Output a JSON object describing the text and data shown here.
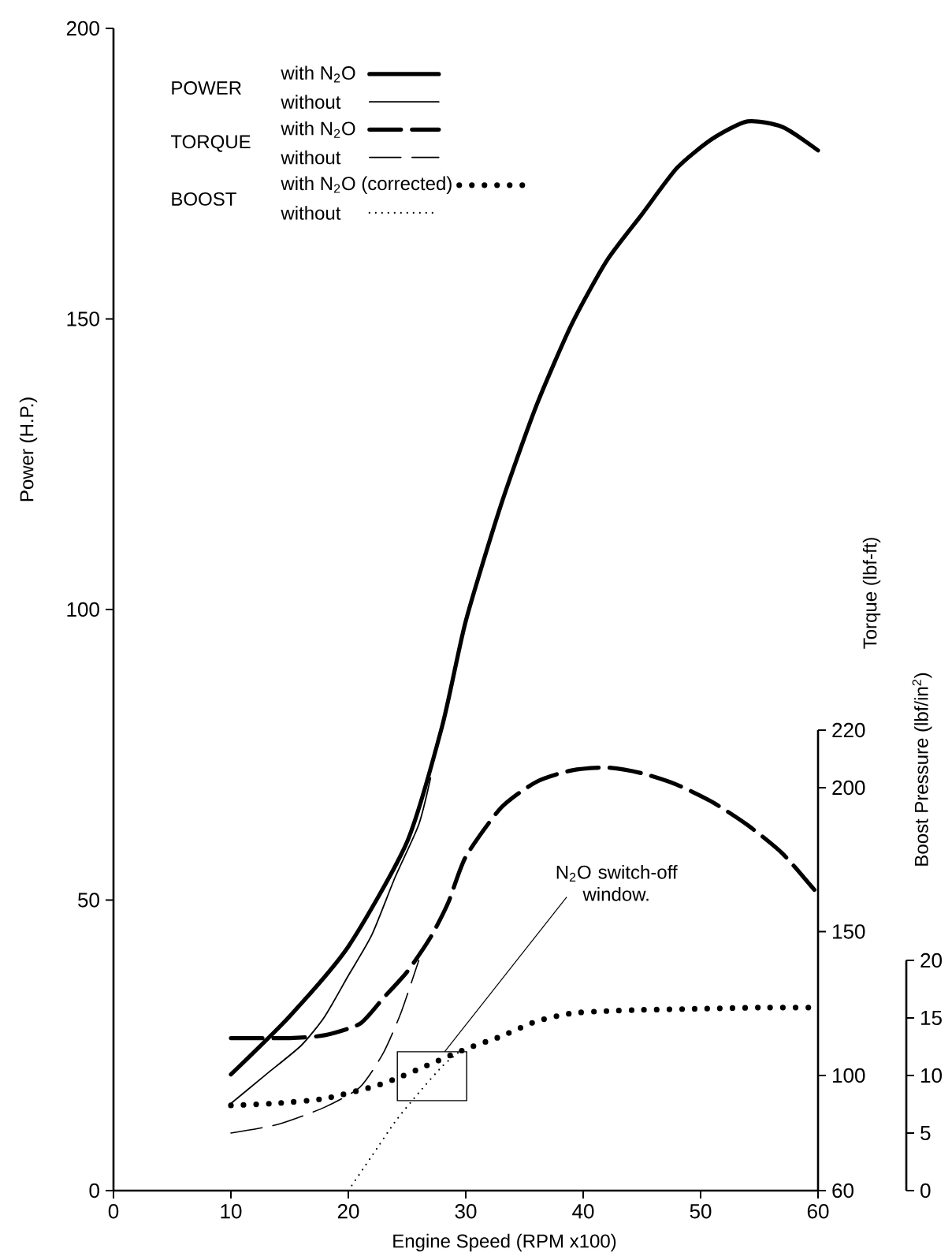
{
  "chart_data": {
    "type": "line",
    "xlabel": "Engine Speed (RPM x100)",
    "ylabel": "Power (H.P.)",
    "y2label": "Torque (lbf-ft)",
    "y3label": "Boost Pressure (lbf/in$^{2}$)",
    "xlim": [
      0,
      60
    ],
    "xticks": [
      0,
      10,
      20,
      30,
      40,
      50,
      60
    ],
    "ylim": [
      0,
      200
    ],
    "yticks": [
      0,
      50,
      100,
      150,
      200
    ],
    "y2lim": [
      60,
      220
    ],
    "y2ticks": [
      60,
      100,
      150,
      200,
      220
    ],
    "y3lim": [
      0,
      20
    ],
    "y3ticks": [
      0,
      5,
      10,
      15,
      20
    ],
    "legend": "top left",
    "annotations": [
      "POWER",
      "TORQUE",
      "BOOST",
      {
        "text": "N$_{2}$O switch-off window.",
        "x": 28.2,
        "y": 23.9
      }
    ],
    "series": [
      {
        "name": "with N$_{2}$O",
        "color": "#000000",
        "line_style": "solid",
        "x": [
          10,
          15,
          20,
          25,
          28,
          30,
          33,
          36,
          39,
          42,
          45,
          48,
          51,
          54,
          57,
          60
        ],
        "values": [
          20,
          30,
          42,
          60,
          80,
          98,
          118,
          135,
          149,
          160,
          168,
          176,
          181,
          184,
          183,
          179
        ]
      },
      {
        "name": "without",
        "color": "#000000",
        "line_style": "solid",
        "x": [
          10,
          13,
          16,
          18,
          20,
          22,
          24,
          26,
          27
        ],
        "values": [
          15,
          20,
          25,
          30,
          37,
          44,
          54,
          63,
          71
        ]
      },
      {
        "name": "with N$_{2}$O",
        "color": "#000000",
        "line_style": "dashed",
        "axis": "y2",
        "x": [
          10,
          15,
          18,
          21,
          23,
          25,
          27,
          28.5,
          30,
          33,
          36,
          39,
          42,
          45,
          48,
          51,
          54,
          57,
          60
        ],
        "values": [
          113,
          113,
          114,
          118,
          127,
          136,
          148,
          160,
          176,
          193,
          202,
          206,
          207,
          205,
          201,
          195,
          187,
          177,
          163
        ]
      },
      {
        "name": "without",
        "color": "#000000",
        "line_style": "dashed",
        "axis": "y2",
        "x": [
          10,
          14,
          18,
          21,
          23,
          24.5,
          26
        ],
        "values": [
          80,
          83,
          89,
          96,
          108,
          122,
          140
        ]
      },
      {
        "name": "with N$_{2}$O (corrected)",
        "color": "#000000",
        "line_style": "dotted",
        "axis": "y3",
        "x": [
          10,
          14,
          18,
          22,
          24,
          27,
          30,
          33,
          36,
          39,
          42,
          45,
          50,
          55,
          60
        ],
        "values": [
          7.4,
          7.6,
          8,
          9,
          9.7,
          11,
          12.3,
          13.4,
          14.7,
          15.4,
          15.6,
          15.7,
          15.8,
          15.9,
          15.9
        ]
      },
      {
        "name": "without",
        "color": "#000000",
        "line_style": "dotted",
        "axis": "y3",
        "x": [
          20,
          22,
          24,
          26,
          28,
          29.5
        ],
        "values": [
          0,
          3,
          6,
          8.5,
          10.8,
          12.1
        ]
      }
    ]
  }
}
